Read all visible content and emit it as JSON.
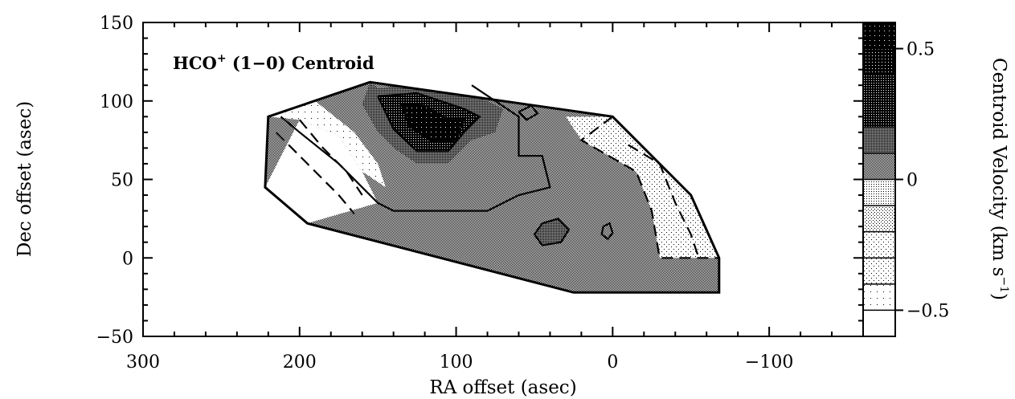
{
  "chart_data": {
    "type": "heatmap",
    "title": {
      "prefix": "HCO",
      "superscript": "+",
      "suffix": " (1−0) Centroid"
    },
    "xlabel": "RA offset (asec)",
    "ylabel": "Dec offset (asec)",
    "xlim": [
      300,
      -160
    ],
    "ylim": [
      -50,
      150
    ],
    "x_ticks": [
      300,
      200,
      100,
      0,
      -100
    ],
    "x_tick_labels": [
      "300",
      "200",
      "100",
      "0",
      "−100"
    ],
    "y_ticks": [
      150,
      100,
      50,
      0,
      -50
    ],
    "y_tick_labels": [
      "150",
      "100",
      "50",
      "0",
      "−50"
    ],
    "colorbar": {
      "label": "Centroid Velocity (km s",
      "label_superscript": "−1",
      "label_close": ")",
      "range": [
        -0.6,
        0.6
      ],
      "ticks": [
        0.5,
        0,
        -0.5
      ],
      "tick_labels": [
        "0.5",
        "0",
        "−0.5"
      ]
    },
    "mapped_region_outline": [
      [
        220,
        90
      ],
      [
        155,
        112
      ],
      [
        0,
        90
      ],
      [
        -50,
        40
      ],
      [
        -68,
        0
      ],
      [
        -68,
        -22
      ],
      [
        25,
        -22
      ],
      [
        195,
        22
      ],
      [
        222,
        45
      ]
    ],
    "velocity_zones": [
      {
        "velocity": -0.55,
        "polygon": [
          [
            222,
            45
          ],
          [
            200,
            88
          ],
          [
            175,
            78
          ],
          [
            160,
            55
          ],
          [
            150,
            35
          ],
          [
            195,
            22
          ]
        ]
      },
      {
        "velocity": -0.4,
        "polygon": [
          [
            200,
            88
          ],
          [
            220,
            90
          ],
          [
            190,
            100
          ],
          [
            165,
            80
          ],
          [
            150,
            60
          ],
          [
            145,
            45
          ],
          [
            160,
            55
          ],
          [
            175,
            78
          ]
        ]
      },
      {
        "velocity": -0.25,
        "polygon": [
          [
            0,
            90
          ],
          [
            -50,
            40
          ],
          [
            -68,
            0
          ],
          [
            -30,
            0
          ],
          [
            -25,
            30
          ],
          [
            -15,
            55
          ],
          [
            20,
            75
          ],
          [
            30,
            90
          ]
        ]
      },
      {
        "velocity": 0.1,
        "polygon": [
          [
            165,
            80
          ],
          [
            190,
            100
          ],
          [
            155,
            112
          ],
          [
            90,
            110
          ],
          [
            60,
            90
          ],
          [
            60,
            65
          ],
          [
            45,
            65
          ],
          [
            40,
            45
          ],
          [
            60,
            40
          ],
          [
            80,
            30
          ],
          [
            110,
            40
          ],
          [
            150,
            60
          ]
        ]
      },
      {
        "velocity": 0.2,
        "polygon": [
          [
            155,
            112
          ],
          [
            150,
            108
          ],
          [
            120,
            112
          ],
          [
            80,
            100
          ],
          [
            70,
            95
          ],
          [
            75,
            80
          ],
          [
            90,
            75
          ],
          [
            105,
            60
          ],
          [
            125,
            60
          ],
          [
            140,
            70
          ],
          [
            150,
            80
          ],
          [
            160,
            98
          ]
        ]
      },
      {
        "velocity": 0.35,
        "polygon": [
          [
            150,
            103
          ],
          [
            125,
            105
          ],
          [
            95,
            95
          ],
          [
            85,
            90
          ],
          [
            95,
            80
          ],
          [
            105,
            68
          ],
          [
            125,
            68
          ],
          [
            140,
            82
          ]
        ]
      },
      {
        "velocity": 0.5,
        "polygon": [
          [
            135,
            98
          ],
          [
            120,
            97
          ],
          [
            105,
            88
          ],
          [
            95,
            88
          ],
          [
            100,
            75
          ],
          [
            115,
            74
          ],
          [
            130,
            84
          ]
        ]
      },
      {
        "velocity": 0.0,
        "polygon": [
          [
            40,
            45
          ],
          [
            60,
            40
          ],
          [
            80,
            30
          ],
          [
            110,
            40
          ],
          [
            145,
            45
          ],
          [
            150,
            35
          ],
          [
            195,
            22
          ],
          [
            25,
            -22
          ],
          [
            -30,
            0
          ],
          [
            -25,
            30
          ],
          [
            -15,
            55
          ],
          [
            20,
            75
          ],
          [
            30,
            90
          ],
          [
            45,
            70
          ]
        ]
      },
      {
        "velocity": 0.15,
        "polygon": [
          [
            45,
            22
          ],
          [
            35,
            25
          ],
          [
            28,
            18
          ],
          [
            33,
            10
          ],
          [
            45,
            8
          ],
          [
            50,
            15
          ]
        ]
      }
    ],
    "contours": [
      {
        "style": "solid",
        "points": [
          [
            212,
            90
          ],
          [
            200,
            80
          ],
          [
            175,
            60
          ],
          [
            160,
            45
          ],
          [
            150,
            35
          ],
          [
            140,
            30
          ],
          [
            120,
            30
          ],
          [
            80,
            30
          ],
          [
            60,
            40
          ],
          [
            40,
            45
          ],
          [
            45,
            65
          ],
          [
            60,
            65
          ],
          [
            60,
            90
          ],
          [
            90,
            110
          ]
        ]
      },
      {
        "style": "solid",
        "points": [
          [
            150,
            103
          ],
          [
            125,
            105
          ],
          [
            95,
            95
          ],
          [
            85,
            90
          ],
          [
            95,
            80
          ],
          [
            105,
            68
          ],
          [
            125,
            68
          ],
          [
            140,
            82
          ],
          [
            150,
            103
          ]
        ]
      },
      {
        "style": "solid",
        "points": [
          [
            135,
            98
          ],
          [
            120,
            97
          ],
          [
            105,
            88
          ],
          [
            95,
            88
          ],
          [
            100,
            75
          ],
          [
            115,
            74
          ],
          [
            130,
            84
          ],
          [
            135,
            98
          ]
        ]
      },
      {
        "style": "solid",
        "points": [
          [
            45,
            22
          ],
          [
            35,
            25
          ],
          [
            28,
            18
          ],
          [
            33,
            10
          ],
          [
            45,
            8
          ],
          [
            50,
            15
          ],
          [
            45,
            22
          ]
        ]
      },
      {
        "style": "solid",
        "points": [
          [
            6,
            20
          ],
          [
            2,
            22
          ],
          [
            0,
            16
          ],
          [
            3,
            12
          ],
          [
            7,
            15
          ],
          [
            6,
            20
          ]
        ]
      },
      {
        "style": "solid",
        "points": [
          [
            60,
            93
          ],
          [
            52,
            97
          ],
          [
            48,
            92
          ],
          [
            55,
            88
          ],
          [
            60,
            93
          ]
        ]
      },
      {
        "style": "dashed",
        "points": [
          [
            0,
            90
          ],
          [
            20,
            75
          ],
          [
            -15,
            55
          ],
          [
            -25,
            30
          ],
          [
            -30,
            0
          ],
          [
            -68,
            0
          ]
        ]
      },
      {
        "style": "dashed",
        "points": [
          [
            -10,
            72
          ],
          [
            -30,
            60
          ],
          [
            -40,
            35
          ],
          [
            -50,
            15
          ],
          [
            -55,
            0
          ]
        ]
      },
      {
        "style": "dashed",
        "points": [
          [
            215,
            80
          ],
          [
            195,
            60
          ],
          [
            185,
            50
          ],
          [
            175,
            40
          ],
          [
            165,
            28
          ]
        ]
      },
      {
        "style": "dashed",
        "points": [
          [
            200,
            88
          ],
          [
            185,
            70
          ],
          [
            170,
            55
          ],
          [
            160,
            40
          ]
        ]
      }
    ]
  }
}
